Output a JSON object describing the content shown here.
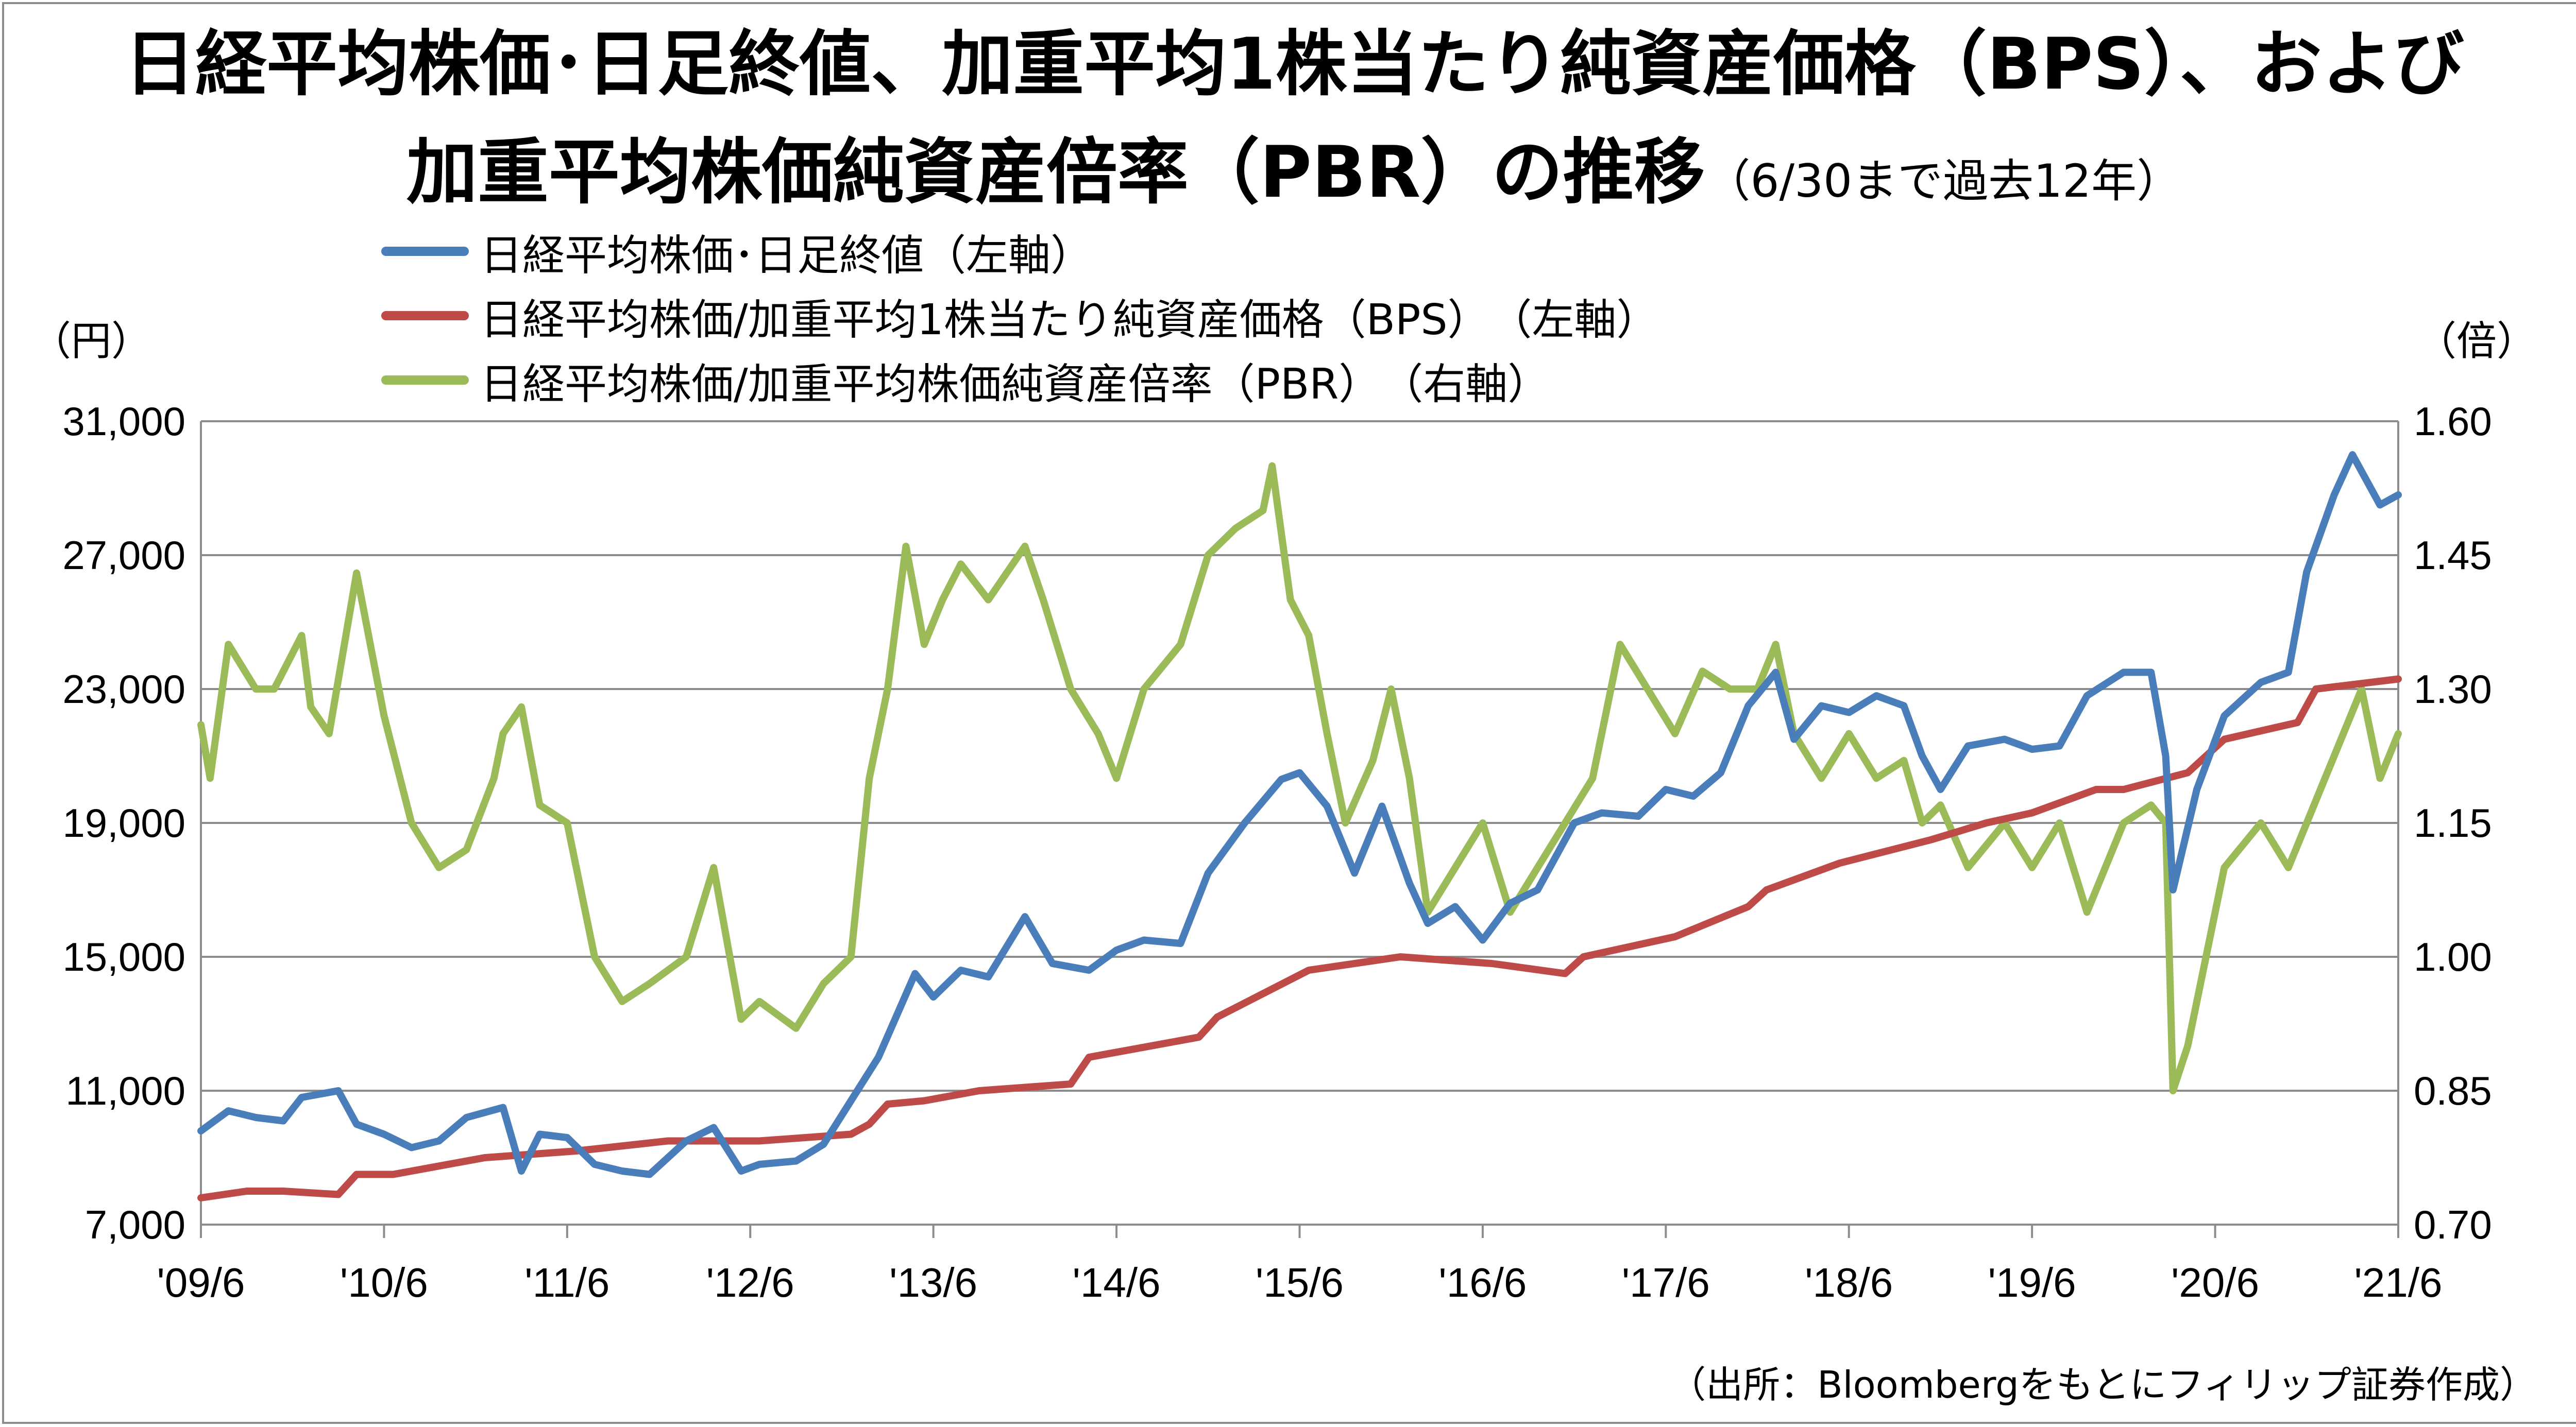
{
  "title": {
    "line1": "日経平均株価･日足終値、加重平均1株当たり純資産価格（BPS）、および",
    "line2_main": "加重平均株価純資産倍率（PBR）の推移",
    "line2_sub": "（6/30まで過去12年）"
  },
  "units": {
    "left": "（円）",
    "right": "（倍）"
  },
  "source": "（出所：Bloombergをもとにフィリップ証券作成）",
  "colors": {
    "nikkei": "#4a7ebb",
    "bps": "#be4b48",
    "pbr": "#9bbb59",
    "grid": "#8c8c8c"
  },
  "chart_data": {
    "type": "line",
    "x_ticks": [
      "'09/6",
      "'10/6",
      "'11/6",
      "'12/6",
      "'13/6",
      "'14/6",
      "'15/6",
      "'16/6",
      "'17/6",
      "'18/6",
      "'19/6",
      "'20/6",
      "'21/6"
    ],
    "y_left": {
      "ticks": [
        "31,000",
        "27,000",
        "23,000",
        "19,000",
        "15,000",
        "11,000",
        "7,000"
      ],
      "min": 7000,
      "max": 31000
    },
    "y_right": {
      "ticks": [
        "1.60",
        "1.45",
        "1.30",
        "1.15",
        "1.00",
        "0.85",
        "0.70"
      ],
      "min": 0.7,
      "max": 1.6
    },
    "grid": "horizontal",
    "series": [
      {
        "name": "日経平均株価･日足終値（左軸）",
        "axis": "left",
        "x": [
          2009.45,
          2009.6,
          2009.75,
          2009.9,
          2010.0,
          2010.2,
          2010.3,
          2010.45,
          2010.6,
          2010.75,
          2010.9,
          2011.1,
          2011.2,
          2011.3,
          2011.45,
          2011.6,
          2011.75,
          2011.9,
          2012.1,
          2012.25,
          2012.4,
          2012.5,
          2012.7,
          2012.85,
          2013.0,
          2013.15,
          2013.35,
          2013.45,
          2013.6,
          2013.75,
          2013.95,
          2014.1,
          2014.3,
          2014.45,
          2014.6,
          2014.8,
          2014.95,
          2015.15,
          2015.35,
          2015.45,
          2015.6,
          2015.75,
          2015.9,
          2016.05,
          2016.15,
          2016.3,
          2016.45,
          2016.6,
          2016.75,
          2016.95,
          2017.1,
          2017.3,
          2017.45,
          2017.6,
          2017.75,
          2017.9,
          2018.05,
          2018.15,
          2018.3,
          2018.45,
          2018.6,
          2018.75,
          2018.85,
          2018.95,
          2019.1,
          2019.3,
          2019.45,
          2019.6,
          2019.75,
          2019.95,
          2020.1,
          2020.18,
          2020.22,
          2020.35,
          2020.5,
          2020.7,
          2020.85,
          2020.95,
          2021.1,
          2021.2,
          2021.35,
          2021.45
        ],
        "y": [
          9800,
          10400,
          10200,
          10100,
          10800,
          11000,
          10000,
          9700,
          9300,
          9500,
          10200,
          10500,
          8600,
          9700,
          9600,
          8800,
          8600,
          8500,
          9500,
          9900,
          8600,
          8800,
          8900,
          9400,
          10700,
          12000,
          14500,
          13800,
          14600,
          14400,
          16200,
          14800,
          14600,
          15200,
          15500,
          15400,
          17500,
          19000,
          20300,
          20500,
          19500,
          17500,
          19500,
          17200,
          16000,
          16500,
          15500,
          16600,
          17000,
          19000,
          19300,
          19200,
          20000,
          19800,
          20500,
          22500,
          23500,
          21500,
          22500,
          22300,
          22800,
          22500,
          21000,
          20000,
          21300,
          21500,
          21200,
          21300,
          22800,
          23500,
          23500,
          21000,
          17000,
          20000,
          22200,
          23200,
          23500,
          26500,
          28800,
          30000,
          28500,
          28800
        ]
      },
      {
        "name": "日経平均株価/加重平均1株当たり純資産価格（BPS）　（左軸）",
        "axis": "left",
        "x": [
          2009.45,
          2009.7,
          2009.9,
          2010.2,
          2010.3,
          2010.5,
          2010.8,
          2011.0,
          2011.5,
          2012.0,
          2012.5,
          2013.0,
          2013.1,
          2013.2,
          2013.4,
          2013.7,
          2014.2,
          2014.3,
          2014.9,
          2015.0,
          2015.5,
          2016.0,
          2016.5,
          2016.9,
          2017.0,
          2017.5,
          2017.9,
          2018.0,
          2018.4,
          2018.9,
          2019.2,
          2019.45,
          2019.8,
          2019.95,
          2020.3,
          2020.5,
          2020.9,
          2021.0,
          2021.45
        ],
        "y": [
          7800,
          8000,
          8000,
          7900,
          8500,
          8500,
          8800,
          9000,
          9200,
          9500,
          9500,
          9700,
          10000,
          10600,
          10700,
          11000,
          11200,
          12000,
          12600,
          13200,
          14600,
          15000,
          14800,
          14500,
          15000,
          15600,
          16500,
          17000,
          17800,
          18500,
          19000,
          19300,
          20000,
          20000,
          20500,
          21500,
          22000,
          23000,
          23300
        ]
      },
      {
        "name": "日経平均株価/加重平均株価純資産倍率（PBR）　（右軸）",
        "axis": "right",
        "x": [
          2009.45,
          2009.5,
          2009.6,
          2009.75,
          2009.85,
          2010.0,
          2010.05,
          2010.15,
          2010.3,
          2010.45,
          2010.6,
          2010.75,
          2010.9,
          2011.05,
          2011.1,
          2011.2,
          2011.3,
          2011.45,
          2011.6,
          2011.75,
          2011.9,
          2012.1,
          2012.25,
          2012.4,
          2012.5,
          2012.7,
          2012.85,
          2013.0,
          2013.1,
          2013.2,
          2013.3,
          2013.4,
          2013.5,
          2013.6,
          2013.75,
          2013.95,
          2014.05,
          2014.2,
          2014.35,
          2014.45,
          2014.6,
          2014.8,
          2014.95,
          2015.1,
          2015.25,
          2015.3,
          2015.4,
          2015.5,
          2015.6,
          2015.7,
          2015.85,
          2015.95,
          2016.05,
          2016.15,
          2016.3,
          2016.45,
          2016.6,
          2016.75,
          2016.9,
          2017.05,
          2017.2,
          2017.35,
          2017.5,
          2017.65,
          2017.8,
          2017.95,
          2018.05,
          2018.15,
          2018.3,
          2018.45,
          2018.6,
          2018.75,
          2018.85,
          2018.95,
          2019.1,
          2019.3,
          2019.45,
          2019.6,
          2019.75,
          2019.95,
          2020.1,
          2020.18,
          2020.22,
          2020.3,
          2020.5,
          2020.7,
          2020.85,
          2020.95,
          2021.05,
          2021.15,
          2021.25,
          2021.35,
          2021.45
        ],
        "y": [
          1.26,
          1.2,
          1.35,
          1.3,
          1.3,
          1.36,
          1.28,
          1.25,
          1.43,
          1.27,
          1.15,
          1.1,
          1.12,
          1.2,
          1.25,
          1.28,
          1.17,
          1.15,
          1.0,
          0.95,
          0.97,
          1.0,
          1.1,
          0.93,
          0.95,
          0.92,
          0.97,
          1.0,
          1.2,
          1.3,
          1.46,
          1.35,
          1.4,
          1.44,
          1.4,
          1.46,
          1.4,
          1.3,
          1.25,
          1.2,
          1.3,
          1.35,
          1.45,
          1.48,
          1.5,
          1.55,
          1.4,
          1.36,
          1.25,
          1.15,
          1.22,
          1.3,
          1.2,
          1.05,
          1.1,
          1.15,
          1.05,
          1.1,
          1.15,
          1.2,
          1.35,
          1.3,
          1.25,
          1.32,
          1.3,
          1.3,
          1.35,
          1.25,
          1.2,
          1.25,
          1.2,
          1.22,
          1.15,
          1.17,
          1.1,
          1.15,
          1.1,
          1.15,
          1.05,
          1.15,
          1.17,
          1.15,
          0.85,
          0.9,
          1.1,
          1.15,
          1.1,
          1.15,
          1.2,
          1.25,
          1.3,
          1.2,
          1.25
        ]
      }
    ]
  }
}
